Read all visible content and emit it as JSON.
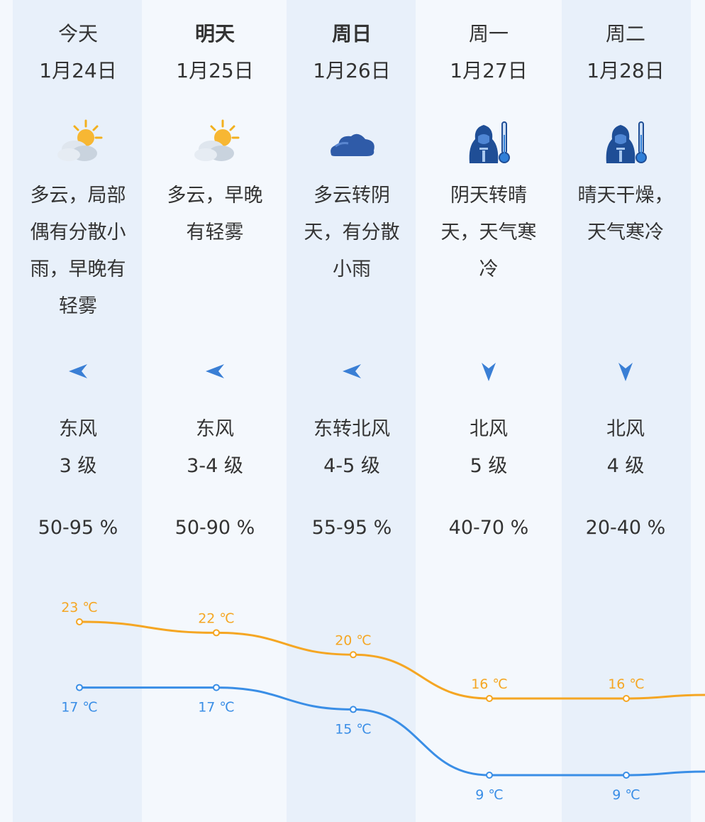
{
  "days": [
    {
      "dow": "今天",
      "date": "1月24日",
      "icon": "partly-cloudy-sun-icon",
      "desc": [
        "多云，局部",
        "偶有分散小",
        "雨，早晚有",
        "轻雾"
      ],
      "wind_icon": "wind-arrow-left-icon",
      "wind_dir": "东风",
      "wind_level": "3 级",
      "humidity": "50-95 %",
      "high": "23 ℃",
      "low": "17 ℃"
    },
    {
      "dow": "明天",
      "date": "1月25日",
      "icon": "partly-cloudy-sun-icon",
      "desc": [
        "多云，早晚",
        "有轻雾"
      ],
      "wind_icon": "wind-arrow-left-icon",
      "wind_dir": "东风",
      "wind_level": "3-4 级",
      "humidity": "50-90 %",
      "high": "22 ℃",
      "low": "17 ℃"
    },
    {
      "dow": "周日",
      "date": "1月26日",
      "icon": "cloud-icon",
      "desc": [
        "多云转阴",
        "天，有分散",
        "小雨"
      ],
      "wind_icon": "wind-arrow-left-icon",
      "wind_dir": "东转北风",
      "wind_level": "4-5 级",
      "humidity": "55-95 %",
      "high": "20 ℃",
      "low": "15 ℃"
    },
    {
      "dow": "周一",
      "date": "1月27日",
      "icon": "cold-thermometer-icon",
      "desc": [
        "阴天转晴",
        "天，天气寒",
        "冷"
      ],
      "wind_icon": "wind-arrow-down-icon",
      "wind_dir": "北风",
      "wind_level": "5 级",
      "humidity": "40-70 %",
      "high": "16 ℃",
      "low": "9 ℃"
    },
    {
      "dow": "周二",
      "date": "1月28日",
      "icon": "cold-thermometer-icon",
      "desc": [
        "晴天干燥，",
        "天气寒冷"
      ],
      "wind_icon": "wind-arrow-down-icon",
      "wind_dir": "北风",
      "wind_level": "4 级",
      "humidity": "20-40 %",
      "high": "16 ℃",
      "low": "9 ℃"
    }
  ],
  "chart_data": {
    "type": "line",
    "categories": [
      "1月24日",
      "1月25日",
      "1月26日",
      "1月27日",
      "1月28日"
    ],
    "series": [
      {
        "values": [
          23,
          22,
          20,
          16,
          16
        ],
        "color": "#f5a623"
      },
      {
        "values": [
          17,
          17,
          15,
          9,
          9
        ],
        "color": "#3a8ee6"
      }
    ],
    "ylim": [
      9,
      23
    ]
  },
  "colors": {
    "high": "#f5a623",
    "low": "#3a8ee6",
    "arrow": "#3a7fd5",
    "stripe": "#e8f0fa"
  }
}
